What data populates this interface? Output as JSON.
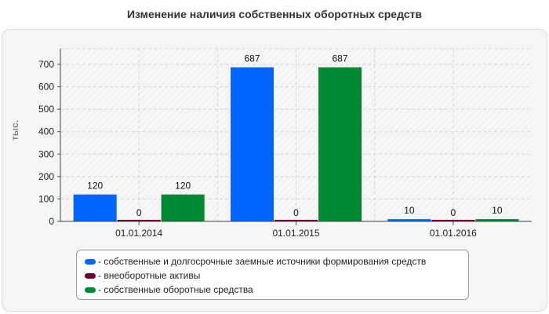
{
  "chart_data": {
    "type": "bar",
    "title": "Изменение наличия собственных оборотных средств",
    "ylabel": "тыс.",
    "xlabel": "",
    "categories": [
      "01.01.2014",
      "01.01.2015",
      "01.01.2016"
    ],
    "ylim": [
      0,
      770
    ],
    "yticks": [
      0,
      100,
      200,
      300,
      400,
      500,
      600,
      700
    ],
    "grid": true,
    "legend_position": "bottom",
    "series": [
      {
        "name": "- собственные и долгосрочные заемные источники формирования средств",
        "color": "#0066ff",
        "values": [
          120,
          687,
          10
        ]
      },
      {
        "name": "- внеоборотные активы",
        "color": "#6b0033",
        "values": [
          0,
          0,
          0
        ]
      },
      {
        "name": "- собственные оборотные средства",
        "color": "#008833",
        "values": [
          120,
          687,
          10
        ]
      }
    ]
  }
}
